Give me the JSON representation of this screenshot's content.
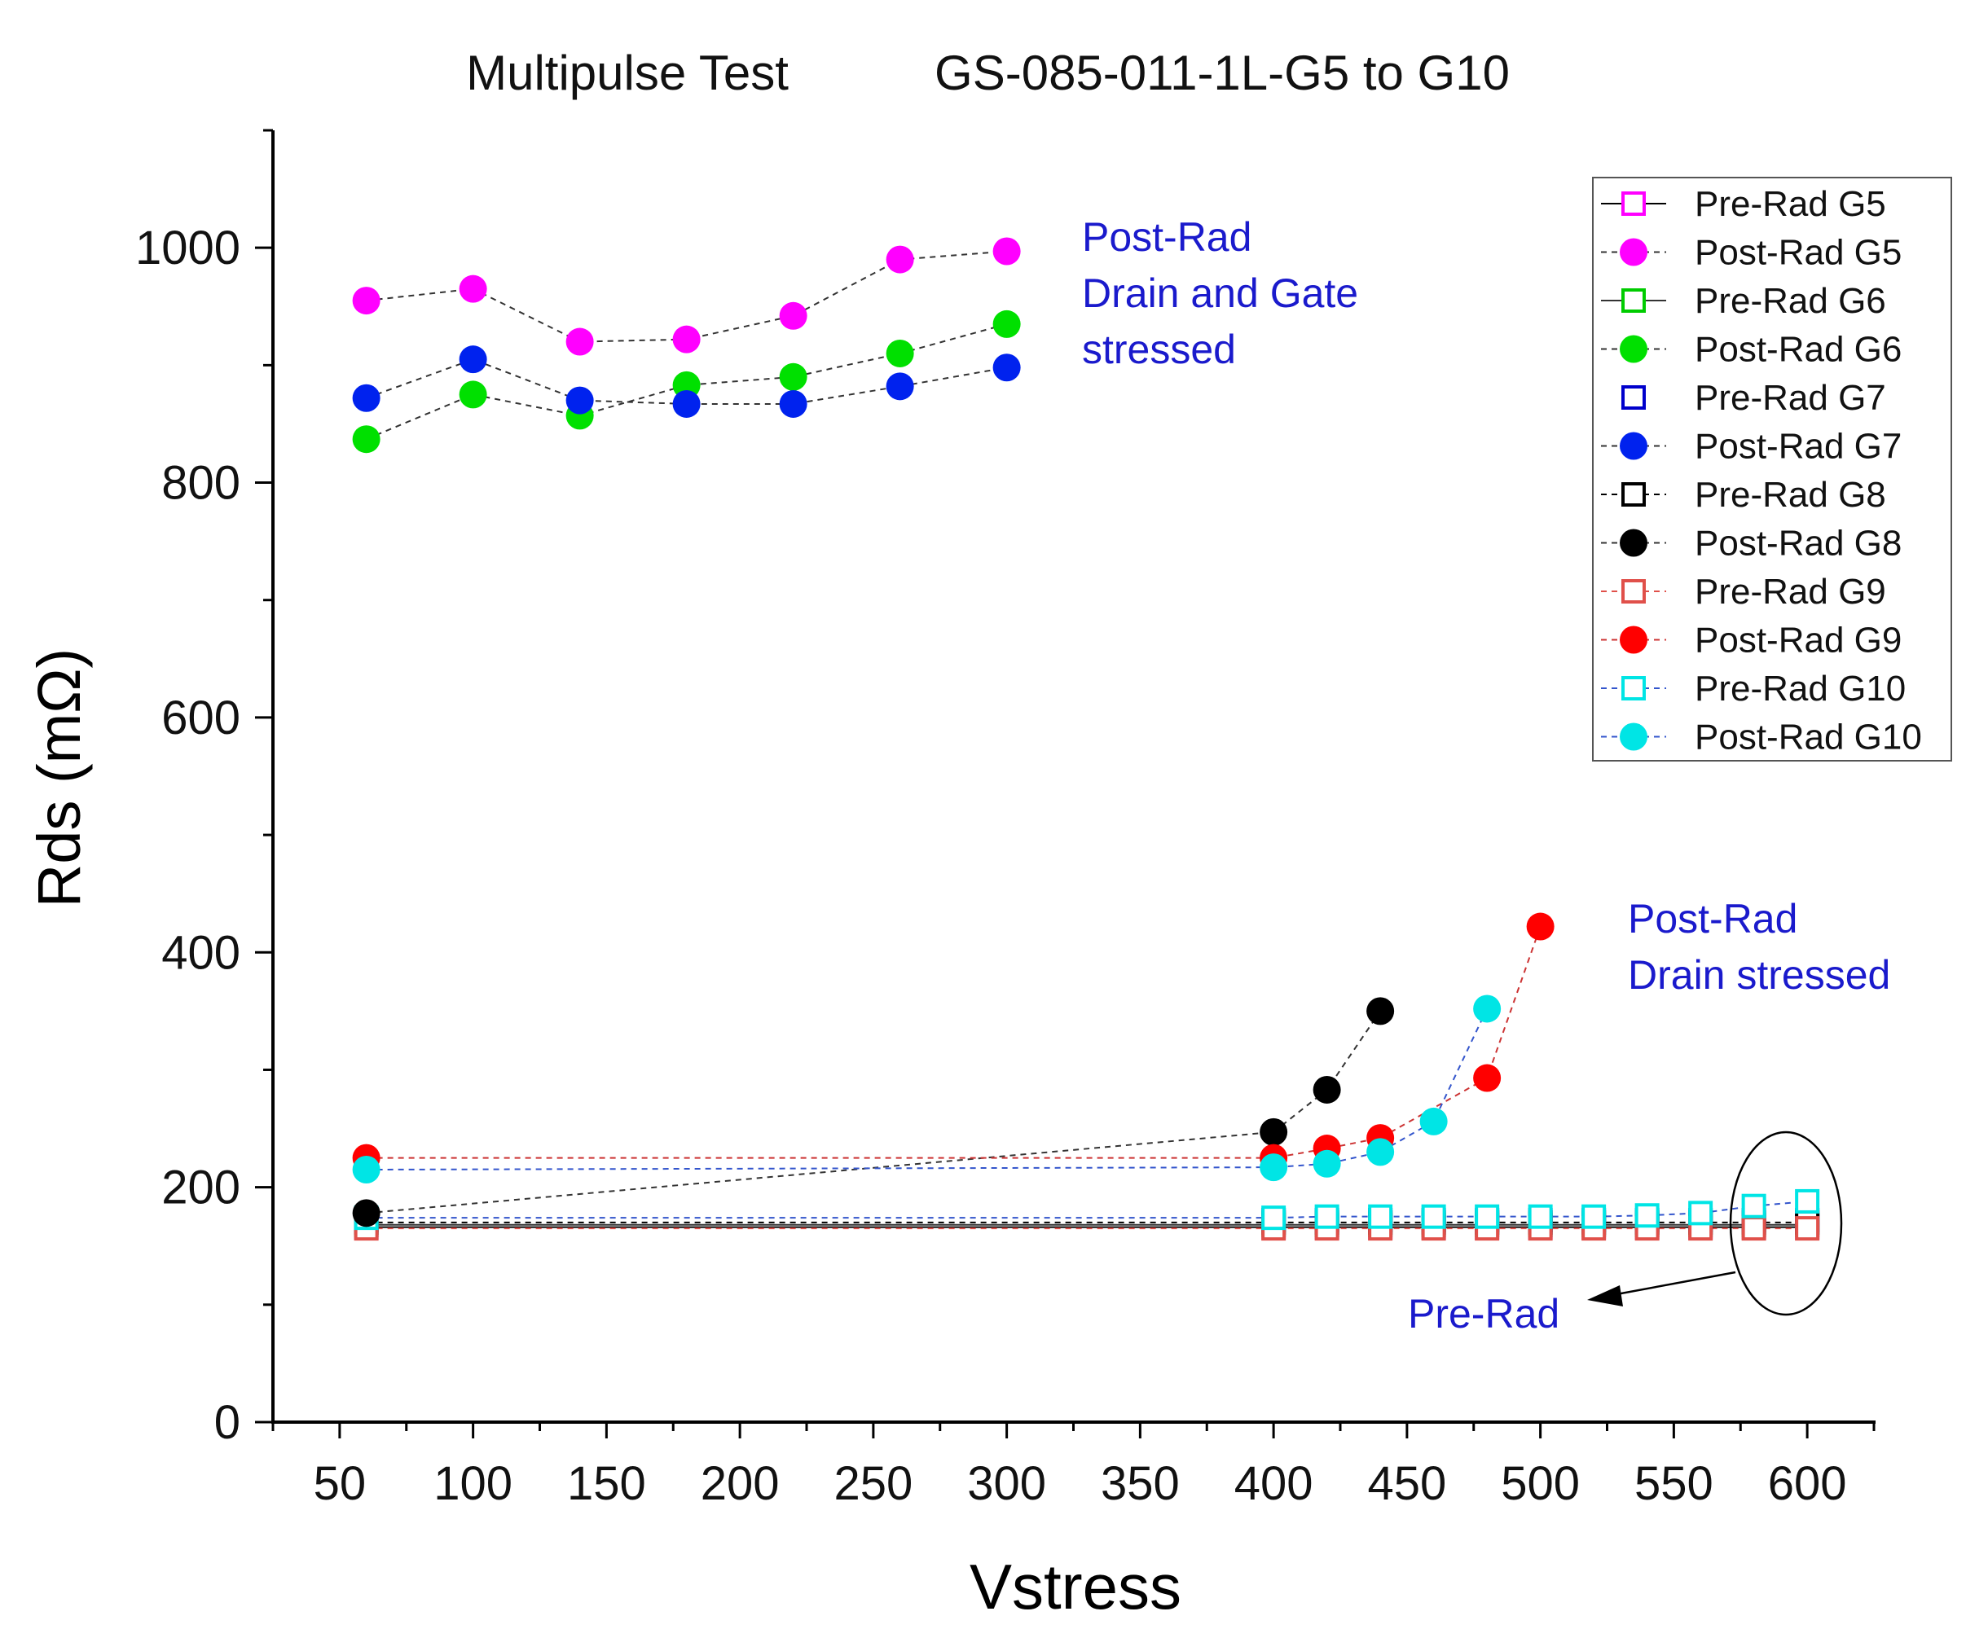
{
  "chart_data": {
    "type": "scatter",
    "title_left": "Multipulse Test",
    "title_right": "GS-085-011-1L-G5 to G10",
    "xlabel": "Vstress",
    "ylabel": "Rds (mΩ)",
    "xlim": [
      25,
      625
    ],
    "ylim": [
      0,
      1100
    ],
    "xticks": [
      50,
      100,
      150,
      200,
      250,
      300,
      350,
      400,
      450,
      500,
      550,
      600
    ],
    "yticks": [
      0,
      200,
      400,
      600,
      800,
      1000
    ],
    "grid": false,
    "legend_position": "top-right",
    "series": [
      {
        "name": "Pre-Rad G5",
        "color": "#ff00ff",
        "line_color": "#000000",
        "line": "solid",
        "marker": "square-open",
        "x": [
          60,
          400,
          420,
          440,
          460,
          480,
          500,
          520,
          540,
          560,
          580,
          600
        ],
        "y": [
          166,
          166,
          166,
          166,
          166,
          166,
          166,
          166,
          166,
          166,
          166,
          166
        ]
      },
      {
        "name": "Post-Rad G5",
        "color": "#ff00ff",
        "line_color": "#333333",
        "line": "dashed",
        "marker": "circle",
        "x": [
          60,
          100,
          140,
          180,
          220,
          260,
          300
        ],
        "y": [
          955,
          965,
          920,
          922,
          942,
          990,
          997
        ]
      },
      {
        "name": "Pre-Rad G6",
        "color": "#00cc00",
        "line_color": "#333333",
        "line": "solid",
        "marker": "square-open",
        "x": [
          60,
          400,
          420,
          440,
          460,
          480,
          500,
          520,
          540,
          560,
          580,
          600
        ],
        "y": [
          168,
          168,
          168,
          168,
          168,
          168,
          168,
          168,
          168,
          168,
          168,
          168
        ]
      },
      {
        "name": "Post-Rad G6",
        "color": "#00e000",
        "line_color": "#333333",
        "line": "dashed",
        "marker": "circle",
        "x": [
          60,
          100,
          140,
          180,
          220,
          260,
          300
        ],
        "y": [
          837,
          875,
          857,
          883,
          890,
          910,
          935
        ]
      },
      {
        "name": "Pre-Rad G7",
        "color": "#0000cc",
        "line_color": "#0000cc",
        "line": "none",
        "marker": "square-open",
        "x": [
          60,
          400,
          420,
          440,
          460,
          480,
          500,
          520,
          540,
          560,
          580,
          600
        ],
        "y": [
          172,
          172,
          172,
          172,
          172,
          172,
          172,
          172,
          172,
          172,
          172,
          172
        ]
      },
      {
        "name": "Post-Rad G7",
        "color": "#0022ee",
        "line_color": "#333333",
        "line": "dashed",
        "marker": "circle",
        "x": [
          60,
          100,
          140,
          180,
          220,
          260,
          300
        ],
        "y": [
          872,
          905,
          870,
          867,
          867,
          882,
          898
        ]
      },
      {
        "name": "Pre-Rad G8",
        "color": "#000000",
        "line_color": "#000000",
        "line": "dashed",
        "marker": "square-open",
        "x": [
          60,
          400,
          420,
          440,
          460,
          480,
          500,
          520,
          540,
          560,
          580,
          600
        ],
        "y": [
          170,
          170,
          170,
          170,
          170,
          170,
          170,
          170,
          170,
          170,
          170,
          170
        ]
      },
      {
        "name": "Post-Rad G8",
        "color": "#000000",
        "line_color": "#333333",
        "line": "dashed",
        "marker": "circle",
        "x": [
          60,
          400,
          420,
          440
        ],
        "y": [
          178,
          247,
          283,
          350
        ]
      },
      {
        "name": "Pre-Rad G9",
        "color": "#e0504a",
        "line_color": "#e0504a",
        "line": "dashed",
        "marker": "square-open",
        "x": [
          60,
          400,
          420,
          440,
          460,
          480,
          500,
          520,
          540,
          560,
          580,
          600
        ],
        "y": [
          165,
          165,
          165,
          165,
          165,
          165,
          165,
          165,
          165,
          165,
          165,
          165
        ]
      },
      {
        "name": "Post-Rad G9",
        "color": "#ff0000",
        "line_color": "#cc3333",
        "line": "dashed",
        "marker": "circle",
        "x": [
          60,
          400,
          420,
          440,
          480,
          500
        ],
        "y": [
          225,
          225,
          233,
          242,
          293,
          422
        ]
      },
      {
        "name": "Pre-Rad G10",
        "color": "#00e5e5",
        "line_color": "#3355cc",
        "line": "dashed",
        "marker": "square-open",
        "x": [
          60,
          400,
          420,
          440,
          460,
          480,
          500,
          520,
          540,
          560,
          580,
          600
        ],
        "y": [
          174,
          174,
          175,
          175,
          175,
          175,
          175,
          175,
          176,
          178,
          184,
          188
        ]
      },
      {
        "name": "Post-Rad G10",
        "color": "#00e5e5",
        "line_color": "#3355cc",
        "line": "dashed",
        "marker": "circle",
        "x": [
          60,
          400,
          420,
          440,
          460,
          480
        ],
        "y": [
          215,
          217,
          220,
          230,
          256,
          352
        ]
      }
    ],
    "annotations": [
      {
        "lines": [
          "Post-Rad",
          "Drain and Gate",
          "stressed"
        ]
      },
      {
        "lines": [
          "Post-Rad",
          "Drain stressed"
        ]
      },
      {
        "lines": [
          "Pre-Rad"
        ]
      }
    ]
  }
}
